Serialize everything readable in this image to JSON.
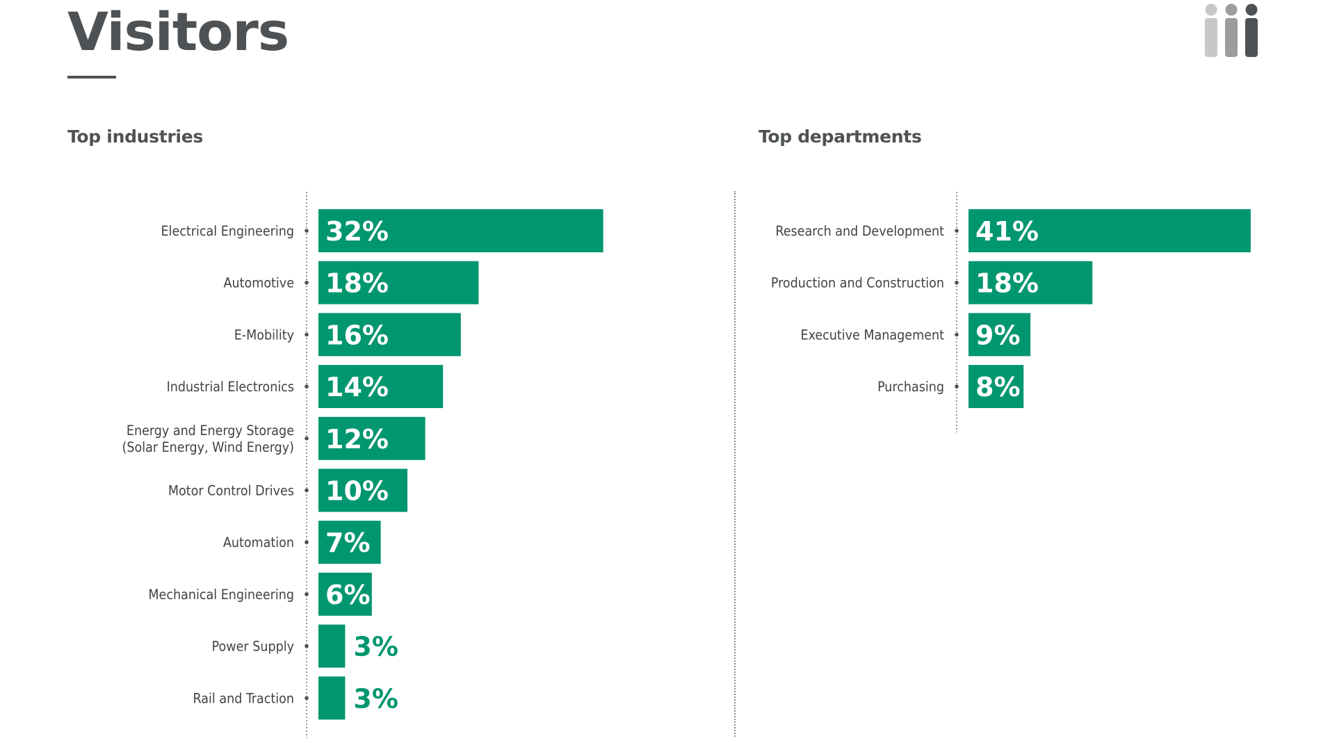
{
  "page": {
    "title": "Visitors"
  },
  "colors": {
    "bar": "#009670",
    "heading": "#4f5254",
    "label": "#3f4244",
    "axis": "#7d7d7d"
  },
  "icons": [
    "people-icon"
  ],
  "chart_data": [
    {
      "type": "bar",
      "orientation": "horizontal",
      "title": "Top industries",
      "categories": [
        "Electrical Engineering",
        "Automotive",
        "E-Mobility",
        "Industrial Electronics",
        "Energy and Energy Storage\n(Solar Energy, Wind Energy)",
        "Motor Control Drives",
        "Automation",
        "Mechanical Engineering",
        "Power Supply",
        "Rail and Traction"
      ],
      "values": [
        32,
        18,
        16,
        14,
        12,
        10,
        7,
        6,
        3,
        3
      ],
      "value_labels": [
        "32%",
        "18%",
        "16%",
        "14%",
        "12%",
        "10%",
        "7%",
        "6%",
        "3%",
        "3%"
      ],
      "unit": "%",
      "grid": false,
      "legend": "none"
    },
    {
      "type": "bar",
      "orientation": "horizontal",
      "title": "Top departments",
      "categories": [
        "Research and Development",
        "Production and Construction",
        "Executive Management",
        "Purchasing"
      ],
      "values": [
        41,
        18,
        9,
        8
      ],
      "value_labels": [
        "41%",
        "18%",
        "9%",
        "8%"
      ],
      "unit": "%",
      "grid": false,
      "legend": "none"
    }
  ]
}
